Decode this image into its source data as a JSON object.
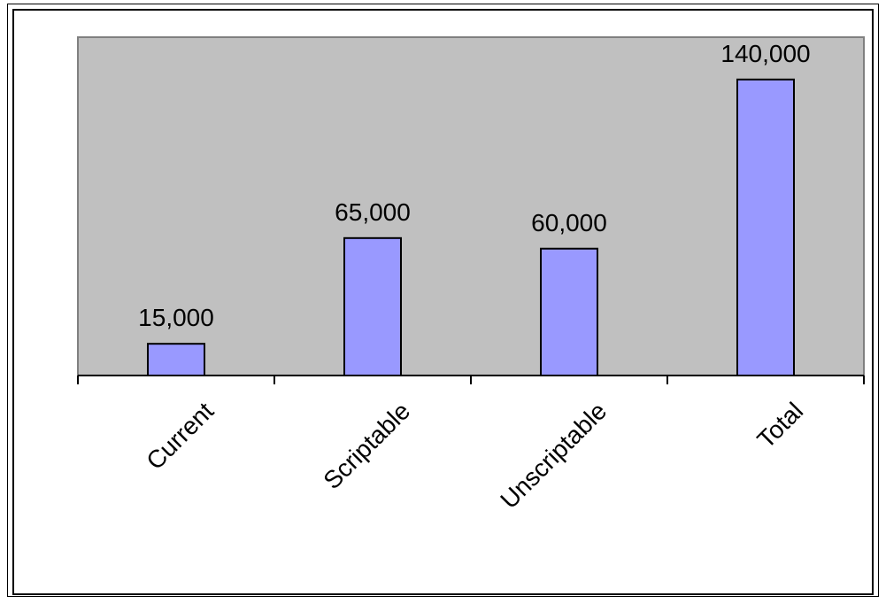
{
  "chart_data": {
    "type": "bar",
    "title": "",
    "xlabel": "",
    "ylabel": "",
    "categories": [
      "Current",
      "Scriptable",
      "Unscriptable",
      "Total"
    ],
    "values": [
      15000,
      65000,
      60000,
      140000
    ],
    "data_labels": [
      "15,000",
      "65,000",
      "60,000",
      "140,000"
    ],
    "ylim": [
      0,
      160000
    ],
    "grid": false,
    "legend": "none",
    "colors": {
      "bar_fill": "#9999ff",
      "plot_background": "#c0c0c0",
      "plot_border": "#808080"
    }
  }
}
